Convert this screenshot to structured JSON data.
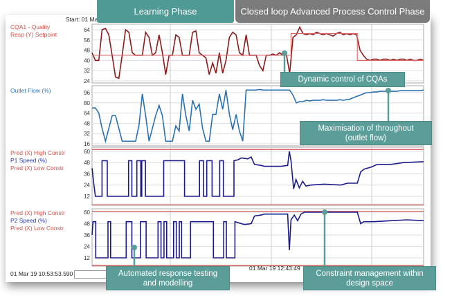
{
  "header": {
    "start_label": "Start: 01 Ma"
  },
  "phases": {
    "learning": "Learning Phase",
    "closed_loop": "Closed loop Advanced Process Control Phase"
  },
  "panels": [
    {
      "labels": [
        "CQA1 - Quality",
        "Resp (Y) Setpoint"
      ]
    },
    {
      "labels": [
        "Outlet Flow (%)"
      ]
    },
    {
      "labels": [
        "Pred (X) High Constr",
        "P1 Speed (%)",
        "Pred (X) Low Constr"
      ]
    },
    {
      "labels": [
        "Pred (X) High Constr",
        "P2 Speed (%)",
        "Pred (X) Low Constr"
      ]
    }
  ],
  "footer": {
    "timestamp": "01 Mar 19 10:53:53.590",
    "axis_time": "01 Mar 19 12:43:49"
  },
  "callouts": {
    "cqa": "Dynamic control of CQAs",
    "throughput": [
      "Maximisation of throughout",
      "(outlet flow)"
    ],
    "testing": [
      "Automated  response testing",
      "and modelling"
    ],
    "constraint": [
      "Constraint management within",
      "design space"
    ]
  },
  "colors": {
    "learning": "#4f9a94",
    "closed_loop": "#7b7b7b",
    "callout": "#5b9e99",
    "cqa": "#8b1a1a",
    "setpoint": "#e06060",
    "flow": "#2a6fb0",
    "speed": "#1a1a8c",
    "constraint": "#d9534f"
  },
  "chart_data": [
    {
      "type": "line",
      "ylim": [
        22.4,
        68.3
      ],
      "yticks": [
        24,
        32,
        40,
        48,
        56,
        64
      ],
      "grid": true,
      "series": [
        {
          "name": "CQA1 - Quality",
          "values": [
            46,
            40,
            40,
            64,
            65,
            60,
            44,
            27,
            26,
            44,
            64,
            62,
            46,
            44,
            44,
            44,
            62,
            58,
            44,
            46,
            60,
            46,
            29,
            44,
            44,
            60,
            58,
            44,
            44,
            44,
            62,
            63,
            46,
            44,
            42,
            29,
            38,
            30,
            46,
            30,
            40,
            58,
            62,
            60,
            46,
            44,
            60,
            44,
            44,
            44,
            36,
            32,
            44,
            44,
            45,
            44,
            46,
            44,
            45,
            30,
            58,
            60,
            66,
            61,
            60,
            61,
            60,
            62,
            61,
            60,
            61,
            60,
            59,
            61,
            62,
            60,
            61,
            60,
            61,
            60,
            48,
            44,
            41,
            40,
            41,
            41,
            40,
            41,
            41,
            40,
            41,
            40,
            41,
            41,
            40,
            41,
            40,
            40,
            41,
            40
          ]
        },
        {
          "name": "Resp (Y) Setpoint",
          "step": [
            [
              0,
              44
            ],
            [
              60,
              44
            ],
            [
              60,
              61
            ],
            [
              80,
              61
            ],
            [
              80,
              40
            ],
            [
              100,
              40
            ]
          ]
        }
      ]
    },
    {
      "type": "line",
      "ylim": [
        12.8,
        106.8
      ],
      "yticks": [
        16,
        32,
        48,
        64,
        80,
        96
      ],
      "grid": true,
      "series": [
        {
          "name": "Outlet Flow (%)",
          "values": [
            72,
            72,
            64,
            40,
            20,
            40,
            60,
            60,
            40,
            20,
            20,
            20,
            20,
            20,
            44,
            94,
            60,
            20,
            40,
            60,
            76,
            60,
            20,
            20,
            20,
            44,
            36,
            94,
            60,
            36,
            84,
            70,
            78,
            40,
            20,
            20,
            62,
            62,
            94,
            70,
            100,
            62,
            38,
            62,
            36,
            20,
            100,
            100,
            100,
            100,
            101,
            100,
            100,
            100,
            100,
            100,
            100,
            100,
            100,
            100,
            92,
            80,
            82,
            82,
            84,
            83,
            84,
            84,
            84,
            85,
            84,
            84,
            84,
            84,
            85,
            84,
            85,
            86,
            88,
            90,
            92,
            94,
            96,
            96,
            97,
            97,
            98,
            98,
            98,
            98,
            98,
            98,
            99,
            99,
            99,
            99,
            99,
            99,
            99,
            100
          ]
        }
      ]
    },
    {
      "type": "line",
      "ylim": [
        2.4,
        64.4
      ],
      "yticks": [
        12,
        24,
        36,
        48,
        60
      ],
      "grid": true,
      "constraints": {
        "high": 62,
        "low": 3
      },
      "series": [
        {
          "name": "P1 Speed (%)",
          "points": [
            [
              0,
              42
            ],
            [
              0.5,
              26
            ],
            [
              1,
              12
            ],
            [
              3,
              12
            ],
            [
              3,
              50
            ],
            [
              4.6,
              50
            ],
            [
              4.6,
              12
            ],
            [
              11,
              12
            ],
            [
              11,
              50
            ],
            [
              12,
              50
            ],
            [
              12,
              12
            ],
            [
              13.5,
              12
            ],
            [
              13.5,
              50
            ],
            [
              14.7,
              50
            ],
            [
              14.7,
              12
            ],
            [
              15,
              12
            ],
            [
              15,
              50
            ],
            [
              16.1,
              50
            ],
            [
              16.1,
              12
            ],
            [
              21.6,
              12
            ],
            [
              21.6,
              50
            ],
            [
              27.9,
              50
            ],
            [
              27.9,
              12
            ],
            [
              32.4,
              12
            ],
            [
              32.4,
              50
            ],
            [
              33.6,
              50
            ],
            [
              33.6,
              12
            ],
            [
              34.6,
              12
            ],
            [
              34.6,
              50
            ],
            [
              36.2,
              50
            ],
            [
              36.2,
              12
            ],
            [
              38.5,
              12
            ],
            [
              38.5,
              50
            ],
            [
              39.6,
              50
            ],
            [
              39.6,
              12
            ],
            [
              42.8,
              12
            ],
            [
              42.8,
              50
            ],
            [
              44,
              51
            ],
            [
              45,
              53
            ],
            [
              47,
              52
            ],
            [
              48,
              54
            ],
            [
              49,
              46
            ],
            [
              51,
              45
            ],
            [
              52,
              44
            ],
            [
              54,
              44
            ],
            [
              57,
              44
            ],
            [
              59,
              45
            ],
            [
              59.5,
              60
            ],
            [
              60,
              50
            ],
            [
              60.8,
              20
            ],
            [
              61.5,
              30
            ],
            [
              62.5,
              21
            ],
            [
              63.5,
              28
            ],
            [
              64.5,
              23
            ],
            [
              66,
              24
            ],
            [
              70,
              25
            ],
            [
              75,
              24
            ],
            [
              77,
              26
            ],
            [
              80,
              26
            ],
            [
              81,
              38
            ],
            [
              82,
              41
            ],
            [
              84,
              43
            ],
            [
              86,
              46
            ],
            [
              90,
              46
            ],
            [
              94,
              48
            ],
            [
              100,
              49
            ]
          ]
        }
      ]
    },
    {
      "type": "line",
      "ylim": [
        3.3,
        63.6
      ],
      "yticks": [
        12,
        24,
        36,
        48,
        60
      ],
      "grid": true,
      "constraints": {
        "high": 61,
        "low": 4
      },
      "series": [
        {
          "name": "P2 Speed (%)",
          "points": [
            [
              0,
              36
            ],
            [
              0.3,
              50
            ],
            [
              1.1,
              50
            ],
            [
              1.1,
              12
            ],
            [
              4.8,
              12
            ],
            [
              4.8,
              50
            ],
            [
              5.6,
              50
            ],
            [
              5.6,
              12
            ],
            [
              10.3,
              12
            ],
            [
              10.3,
              50
            ],
            [
              12,
              50
            ],
            [
              12,
              12
            ],
            [
              14.6,
              12
            ],
            [
              14.6,
              50
            ],
            [
              16.3,
              50
            ],
            [
              16.3,
              12
            ],
            [
              19.9,
              12
            ],
            [
              19.9,
              50
            ],
            [
              20.8,
              50
            ],
            [
              20.8,
              12
            ],
            [
              21.7,
              12
            ],
            [
              21.7,
              50
            ],
            [
              22.5,
              50
            ],
            [
              22.5,
              12
            ],
            [
              24.6,
              12
            ],
            [
              24.6,
              50
            ],
            [
              25.4,
              50
            ],
            [
              25.4,
              12
            ],
            [
              26.3,
              12
            ],
            [
              26.3,
              50
            ],
            [
              27,
              50
            ],
            [
              27,
              12
            ],
            [
              29.7,
              12
            ],
            [
              29.7,
              50
            ],
            [
              36.6,
              50
            ],
            [
              36.6,
              12
            ],
            [
              39.7,
              12
            ],
            [
              39.7,
              50
            ],
            [
              40.5,
              50
            ],
            [
              40.5,
              12
            ],
            [
              43.1,
              12
            ],
            [
              43.1,
              50
            ],
            [
              45,
              48
            ],
            [
              46,
              47
            ],
            [
              48,
              48
            ],
            [
              49,
              56
            ],
            [
              51,
              57
            ],
            [
              52,
              58
            ],
            [
              55,
              58
            ],
            [
              59,
              58
            ],
            [
              59.5,
              20
            ],
            [
              60,
              52
            ],
            [
              61,
              57
            ],
            [
              62,
              51
            ],
            [
              63,
              58
            ],
            [
              64,
              60
            ],
            [
              80,
              60
            ],
            [
              81,
              48
            ],
            [
              82,
              50
            ],
            [
              85,
              50
            ],
            [
              90,
              51
            ],
            [
              95,
              52
            ],
            [
              100,
              51
            ]
          ]
        }
      ]
    }
  ]
}
